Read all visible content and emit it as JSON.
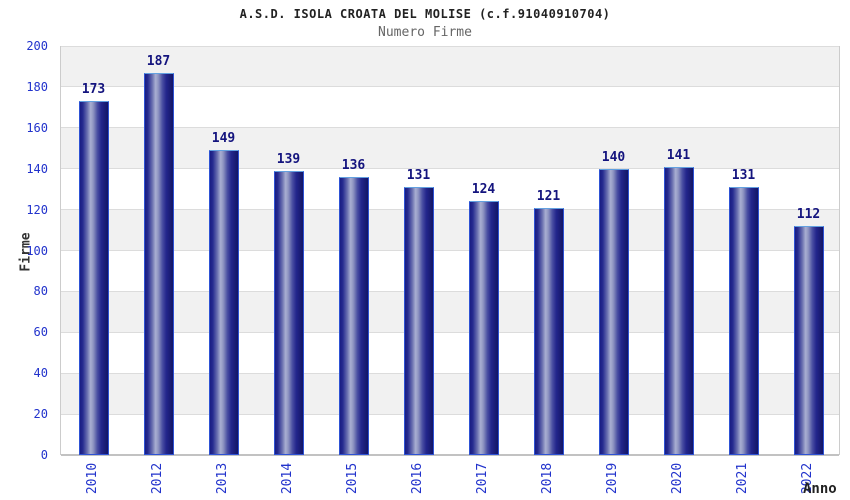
{
  "chart_data": {
    "type": "bar",
    "title": "A.S.D. ISOLA CROATA DEL MOLISE (c.f.91040910704)",
    "subtitle": "Numero Firme",
    "xlabel": "Anno",
    "ylabel": "Firme",
    "categories": [
      "2010",
      "2012",
      "2013",
      "2014",
      "2015",
      "2016",
      "2017",
      "2018",
      "2019",
      "2020",
      "2021",
      "2022"
    ],
    "values": [
      173,
      187,
      149,
      139,
      136,
      131,
      124,
      121,
      140,
      141,
      131,
      112
    ],
    "ylim": [
      0,
      200
    ],
    "yticks": [
      0,
      20,
      40,
      60,
      80,
      100,
      120,
      140,
      160,
      180,
      200
    ],
    "grid": true,
    "legend": null,
    "bands": "alternating gray/white horizontal bands, gray topmost",
    "colors": {
      "bar_dark": "#1a1d82",
      "bar_light": "#a9afd2",
      "bar_edge": "#2e52d4",
      "bar_top_edge": "#62a0e0",
      "value_label": "#14147e",
      "tick_label": "#2233cc",
      "axis_label": "#333333",
      "title": "#222222",
      "subtitle": "#666666",
      "band_gray": "#f1f1f1",
      "gridline": "#dcdcdc"
    }
  }
}
